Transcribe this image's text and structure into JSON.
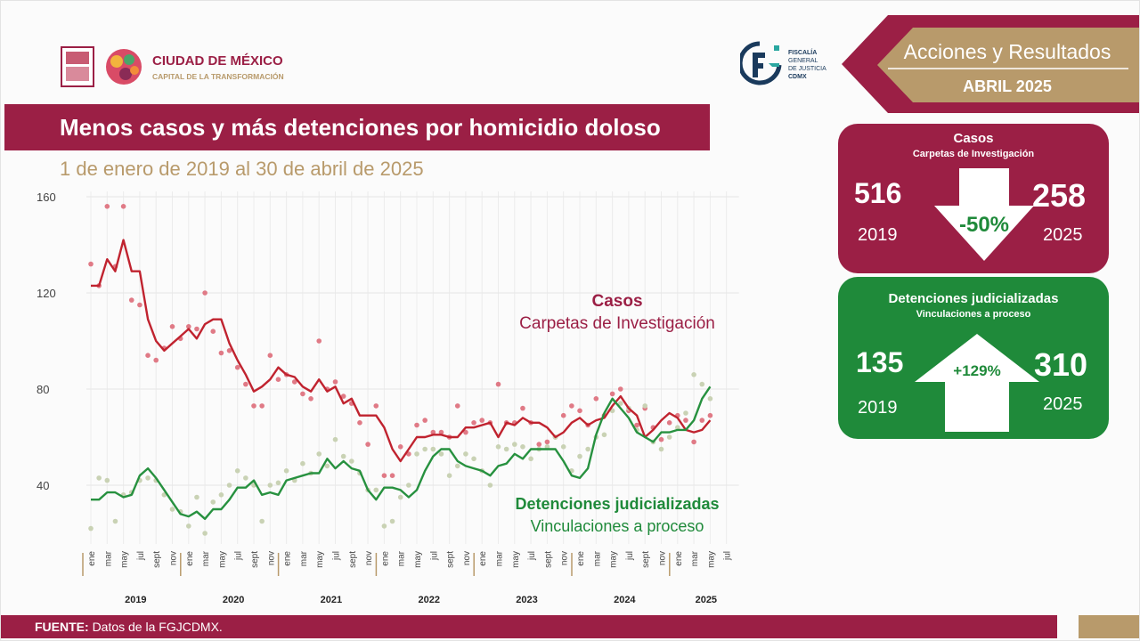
{
  "header": {
    "cdmx_name": "CIUDAD DE MÉXICO",
    "cdmx_tagline": "CAPITAL DE LA TRANSFORMACIÓN",
    "fgj_line1": "FISCALÍA",
    "fgj_line2": "GENERAL",
    "fgj_line3": "DE JUSTICIA",
    "fgj_line4": "CDMX",
    "ribbon_title": "Acciones y Resultados",
    "ribbon_month": "ABRIL 2025"
  },
  "title": "Menos casos y más detenciones por homicidio doloso",
  "subtitle": "1 de enero de 2019 al 30 de abril de 2025",
  "cards": {
    "casos": {
      "title": "Casos",
      "subtitle": "Carpetas de Investigación",
      "value_2019": "516",
      "year_2019": "2019",
      "value_2025": "258",
      "year_2025": "2025",
      "change": "-50%"
    },
    "detenciones": {
      "title": "Detenciones judicializadas",
      "subtitle": "Vinculaciones a proceso",
      "value_2019": "135",
      "year_2019": "2019",
      "value_2025": "310",
      "year_2025": "2025",
      "change": "+129%"
    }
  },
  "footer": {
    "label": "FUENTE:",
    "text": "Datos de la FGJCDMX."
  },
  "colors": {
    "wine": "#9b1f45",
    "green": "#1f8a3a",
    "gold": "#b89a6b",
    "case_line": "#c0232f",
    "case_dots": "#e07a86",
    "det_line": "#27913f",
    "det_dots": "#c9d2b4"
  },
  "chart_data": {
    "type": "line",
    "ylim": [
      0,
      160
    ],
    "yticks": [
      40,
      80,
      120,
      160
    ],
    "x_labels": [
      "ene",
      "mar",
      "may",
      "jul",
      "sept",
      "nov",
      "ene",
      "mar",
      "may",
      "jul",
      "sept",
      "nov",
      "ene",
      "mar",
      "may",
      "jul",
      "sept",
      "nov",
      "ene",
      "mar",
      "may",
      "jul",
      "sept",
      "nov",
      "ene",
      "mar",
      "may",
      "jul",
      "sept",
      "nov",
      "ene",
      "mar",
      "may",
      "jul",
      "sept",
      "nov",
      "ene",
      "mar",
      "may",
      "jul"
    ],
    "years": [
      "2019",
      "2020",
      "2021",
      "2022",
      "2023",
      "2024",
      "2025"
    ],
    "annotations": [
      {
        "series": "casos",
        "title": "Casos",
        "subtitle": "Carpetas de Investigación"
      },
      {
        "series": "detenciones",
        "title": "Detenciones judicializadas",
        "subtitle": "Vinculaciones a proceso"
      }
    ],
    "series": [
      {
        "id": "casos",
        "trend": [
          123,
          123,
          134,
          129,
          142,
          129,
          129,
          109,
          100,
          96,
          99,
          102,
          105,
          101,
          107,
          109,
          109,
          99,
          92,
          86,
          79,
          81,
          84,
          89,
          86,
          85,
          81,
          79,
          84,
          79,
          81,
          74,
          76,
          69,
          69,
          69,
          64,
          55,
          50,
          55,
          60,
          60,
          61,
          61,
          60,
          60,
          64,
          64,
          65,
          66,
          60,
          66,
          65,
          68,
          66,
          66,
          64,
          60,
          62,
          66,
          68,
          65,
          67,
          68,
          73,
          77,
          72,
          69,
          60,
          63,
          67,
          70,
          68,
          63,
          62,
          63,
          67
        ],
        "monthly": [
          132,
          123,
          156,
          131,
          156,
          117,
          115,
          94,
          92,
          97,
          106,
          101,
          106,
          105,
          120,
          104,
          95,
          96,
          89,
          82,
          73,
          73,
          94,
          84,
          86,
          83,
          78,
          76,
          100,
          80,
          83,
          77,
          74,
          66,
          57,
          73,
          44,
          44,
          56,
          53,
          65,
          67,
          62,
          62,
          60,
          73,
          62,
          66,
          67,
          66,
          82,
          66,
          66,
          72,
          66,
          57,
          58,
          60,
          69,
          73,
          71,
          65,
          76,
          69,
          78,
          80,
          71,
          65,
          72,
          64,
          59,
          66,
          69,
          67,
          58,
          67,
          69
        ]
      },
      {
        "id": "detenciones",
        "trend": [
          34,
          34,
          37,
          37,
          35,
          36,
          44,
          47,
          43,
          38,
          33,
          28,
          27,
          29,
          26,
          30,
          30,
          34,
          39,
          39,
          42,
          36,
          37,
          36,
          42,
          43,
          44,
          45,
          45,
          51,
          47,
          50,
          47,
          46,
          38,
          34,
          39,
          39,
          38,
          35,
          38,
          46,
          52,
          55,
          55,
          50,
          48,
          47,
          46,
          44,
          48,
          49,
          53,
          51,
          55,
          55,
          55,
          55,
          50,
          44,
          43,
          47,
          61,
          70,
          76,
          72,
          68,
          62,
          60,
          58,
          62,
          62,
          63,
          63,
          67,
          76,
          81
        ],
        "monthly": [
          22,
          43,
          42,
          25,
          36,
          37,
          42,
          43,
          42,
          36,
          30,
          29,
          23,
          35,
          20,
          33,
          36,
          40,
          46,
          43,
          40,
          25,
          40,
          41,
          46,
          42,
          49,
          45,
          53,
          48,
          59,
          52,
          50,
          45,
          38,
          38,
          23,
          25,
          35,
          40,
          53,
          55,
          55,
          53,
          44,
          48,
          53,
          51,
          46,
          40,
          56,
          55,
          57,
          56,
          51,
          55,
          56,
          60,
          56,
          46,
          52,
          55,
          60,
          61,
          71,
          74,
          72,
          63,
          73,
          58,
          55,
          60,
          64,
          70,
          86,
          82,
          76
        ]
      }
    ]
  }
}
